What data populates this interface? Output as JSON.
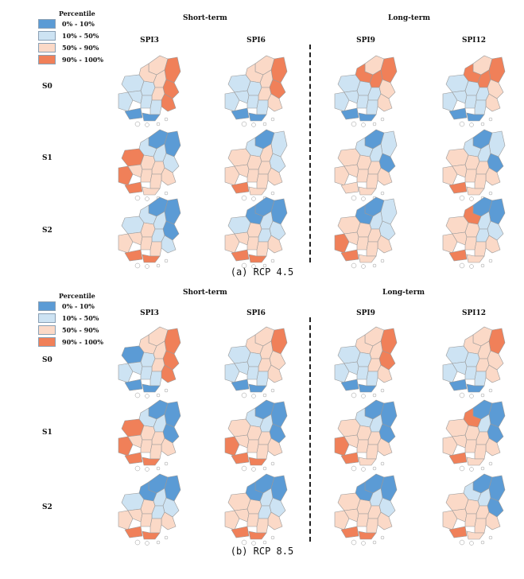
{
  "legend": {
    "title": "Percentile",
    "items": [
      {
        "label": "0% - 10%",
        "color": "#5b9bd5"
      },
      {
        "label": "10% - 50%",
        "color": "#cde3f3"
      },
      {
        "label": "50% - 90%",
        "color": "#fbd9c7"
      },
      {
        "label": "90% - 100%",
        "color": "#f08059"
      }
    ]
  },
  "groups": {
    "short": "Short-term",
    "long": "Long-term"
  },
  "columns": [
    "SPI3",
    "SPI6",
    "SPI9",
    "SPI12"
  ],
  "rows": [
    "S0",
    "S1",
    "S2"
  ],
  "panels": [
    {
      "caption": "(a) RCP 4.5"
    },
    {
      "caption": "(b) RCP 8.5"
    }
  ]
}
